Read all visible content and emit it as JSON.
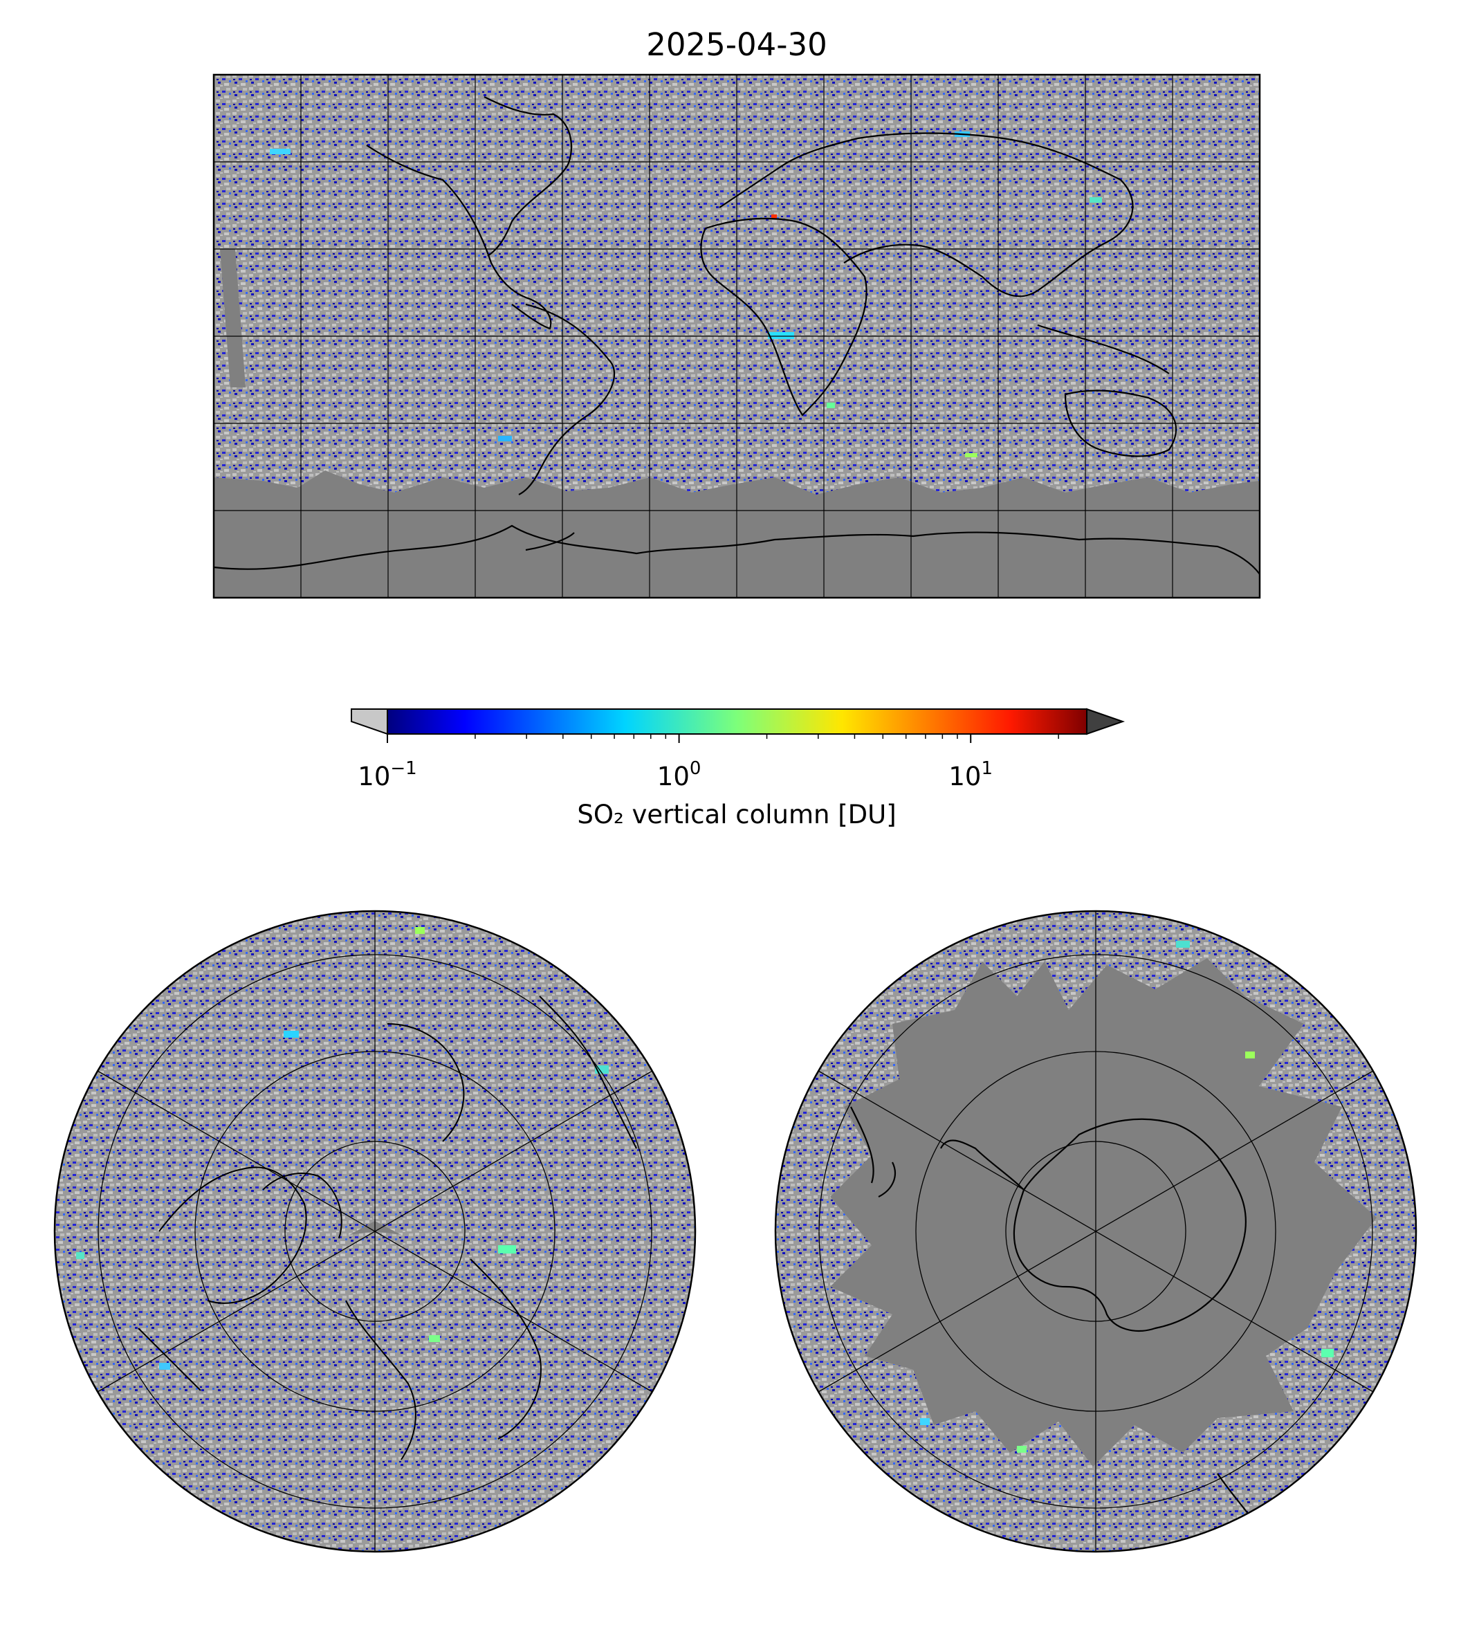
{
  "title": "2025-04-30",
  "colorbar": {
    "label": "SO₂ vertical column [DU]",
    "scale": "log",
    "range": [
      0.1,
      25
    ],
    "extend": "both",
    "under_color": "#c8c8c8",
    "over_color": "#404040",
    "colormap": "jet",
    "ticks": [
      {
        "value": 0.1,
        "base": "10",
        "exponent": "−1"
      },
      {
        "value": 1,
        "base": "10",
        "exponent": "0"
      },
      {
        "value": 10,
        "base": "10",
        "exponent": "1"
      }
    ]
  },
  "colors": {
    "no_data": "#808080",
    "below_range": "#c0c0c0",
    "grid": "#000000",
    "coastline": "#000000"
  },
  "panels": {
    "global": {
      "projection": "PlateCarree",
      "gridlines": true
    },
    "north": {
      "projection": "NorthPolarStereo",
      "gridlines": true
    },
    "south": {
      "projection": "SouthPolarStereo",
      "gridlines": true
    }
  }
}
